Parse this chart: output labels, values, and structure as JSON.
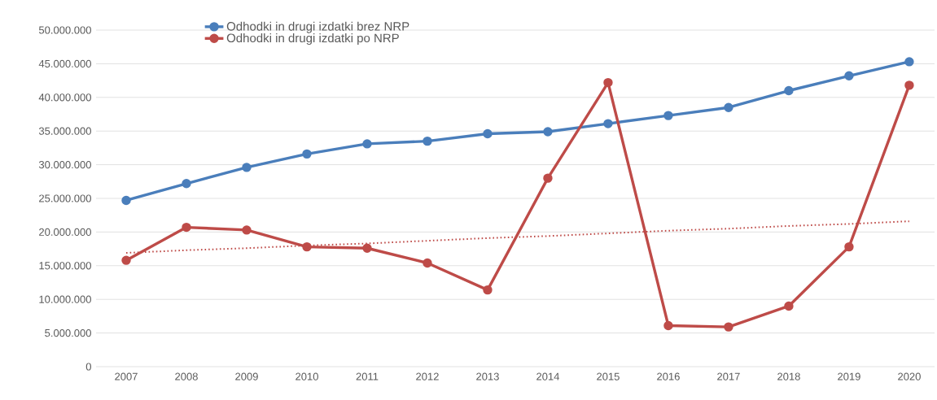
{
  "chart_data": {
    "type": "line",
    "categories": [
      "2007",
      "2008",
      "2009",
      "2010",
      "2011",
      "2012",
      "2013",
      "2014",
      "2015",
      "2016",
      "2017",
      "2018",
      "2019",
      "2020"
    ],
    "series": [
      {
        "name": "Odhodki in drugi izdatki brez NRP",
        "color": "#4a7ebb",
        "marker": "circle",
        "line_style": "solid",
        "values": [
          24700000,
          27200000,
          29600000,
          31600000,
          33100000,
          33500000,
          34600000,
          34900000,
          36100000,
          37300000,
          38500000,
          41000000,
          43200000,
          45300000
        ]
      },
      {
        "name": "Odhodki in drugi izdatki po NRP",
        "color": "#be4b48",
        "marker": "circle",
        "line_style": "solid",
        "values": [
          15800000,
          20700000,
          20300000,
          17800000,
          17600000,
          15400000,
          11400000,
          28000000,
          42200000,
          6100000,
          5900000,
          9000000,
          17800000,
          41800000
        ]
      },
      {
        "type": "line",
        "color": "#be4b48",
        "marker": "none",
        "line_style": "dotted",
        "values": [
          16900000,
          17300000,
          17600000,
          18000000,
          18300000,
          18700000,
          19100000,
          19400000,
          19800000,
          20200000,
          20500000,
          20900000,
          21200000,
          21600000
        ]
      }
    ],
    "ylim": [
      0,
      50000000
    ],
    "yticks": [
      0,
      {
        "value": 5000000,
        "label": "5.000.000"
      },
      {
        "value": 10000000,
        "label": "10.000.000"
      },
      {
        "value": 15000000,
        "label": "15.000.000"
      },
      {
        "value": 20000000,
        "label": "20.000.000"
      },
      {
        "value": 25000000,
        "label": "25.000.000"
      },
      {
        "value": 30000000,
        "label": "30.000.000"
      },
      {
        "value": 35000000,
        "label": "35.000.000"
      },
      {
        "value": 40000000,
        "label": "40.000.000"
      },
      {
        "value": 45000000,
        "label": "45.000.000"
      },
      {
        "value": 50000000,
        "label": "50.000.000"
      }
    ],
    "grid": "y",
    "legend": "top"
  }
}
